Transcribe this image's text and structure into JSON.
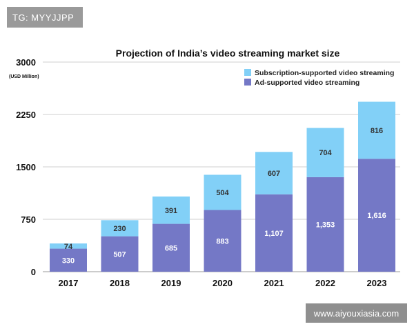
{
  "watermark_top": "TG: MYYJJPP",
  "watermark_bottom": "www.aiyouxiasia.com",
  "colors": {
    "ad_supported": "#7478c6",
    "subscription_supported": "#82d0f7",
    "grid": "#cfcfcf",
    "ad_label_text": "#ffffff",
    "sub_label_text": "#333333"
  },
  "chart_data": {
    "type": "bar",
    "stacked": true,
    "title": "Projection of India’s video streaming market size",
    "ylabel": "(USD Million)",
    "xlabel": "",
    "categories": [
      "2017",
      "2018",
      "2019",
      "2020",
      "2021",
      "2022",
      "2023"
    ],
    "ylim": [
      0,
      3000
    ],
    "yticks": [
      0,
      750,
      1500,
      2250,
      3000
    ],
    "series": [
      {
        "name": "Ad-supported video streaming",
        "values": [
          330,
          507,
          685,
          883,
          1107,
          1353,
          1616
        ],
        "labels": [
          "330",
          "507",
          "685",
          "883",
          "1,107",
          "1,353",
          "1,616"
        ],
        "color": "#7478c6"
      },
      {
        "name": "Subscription-supported video streaming",
        "values": [
          74,
          230,
          391,
          504,
          607,
          704,
          816
        ],
        "labels": [
          "74",
          "230",
          "391",
          "504",
          "607",
          "704",
          "816"
        ],
        "color": "#82d0f7"
      }
    ],
    "legend_position": "top-right",
    "legend_order": [
      "Subscription-supported video streaming",
      "Ad-supported video streaming"
    ],
    "grid": true
  }
}
